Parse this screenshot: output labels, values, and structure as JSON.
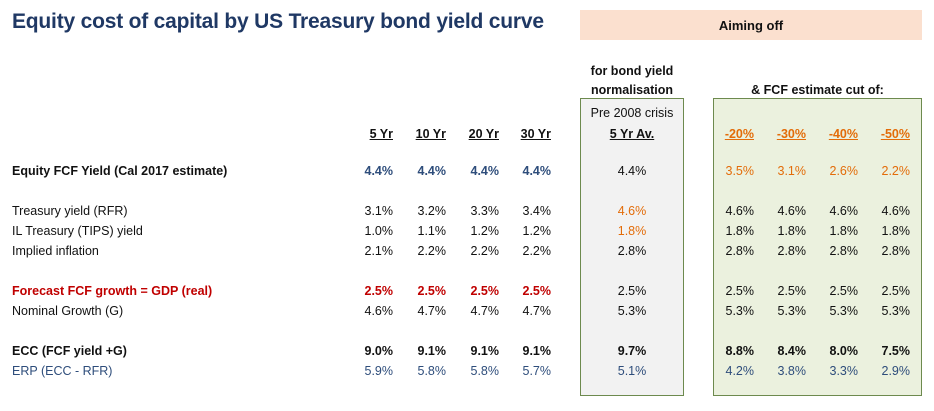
{
  "title": "Equity cost of capital by US Treasury bond yield curve",
  "aiming_off": "Aiming off",
  "bond_note": {
    "line1": "for bond yield",
    "line2": "normalisation",
    "line3": "Pre 2008 crisis"
  },
  "fcf_note": "& FCF estimate cut of:",
  "headers": {
    "tenors": [
      "5 Yr",
      "10 Yr",
      "20 Yr",
      "30 Yr"
    ],
    "avg": "5 Yr Av.",
    "cuts": [
      "-20%",
      "-30%",
      "-40%",
      "-50%"
    ]
  },
  "rows": [
    {
      "label": "Equity FCF Yield (Cal 2017 estimate)",
      "tenors": [
        "4.4%",
        "4.4%",
        "4.4%",
        "4.4%"
      ],
      "avg": "4.4%",
      "cuts": [
        "3.5%",
        "3.1%",
        "2.6%",
        "2.2%"
      ]
    },
    {
      "label": "Treasury yield (RFR)",
      "tenors": [
        "3.1%",
        "3.2%",
        "3.3%",
        "3.4%"
      ],
      "avg": "4.6%",
      "cuts": [
        "4.6%",
        "4.6%",
        "4.6%",
        "4.6%"
      ]
    },
    {
      "label": "IL Treasury (TIPS) yield",
      "tenors": [
        "1.0%",
        "1.1%",
        "1.2%",
        "1.2%"
      ],
      "avg": "1.8%",
      "cuts": [
        "1.8%",
        "1.8%",
        "1.8%",
        "1.8%"
      ]
    },
    {
      "label": "Implied inflation",
      "tenors": [
        "2.1%",
        "2.2%",
        "2.2%",
        "2.2%"
      ],
      "avg": "2.8%",
      "cuts": [
        "2.8%",
        "2.8%",
        "2.8%",
        "2.8%"
      ]
    },
    {
      "label": "Forecast FCF growth = GDP (real)",
      "tenors": [
        "2.5%",
        "2.5%",
        "2.5%",
        "2.5%"
      ],
      "avg": "2.5%",
      "cuts": [
        "2.5%",
        "2.5%",
        "2.5%",
        "2.5%"
      ]
    },
    {
      "label": "Nominal Growth (G)",
      "tenors": [
        "4.6%",
        "4.7%",
        "4.7%",
        "4.7%"
      ],
      "avg": "5.3%",
      "cuts": [
        "5.3%",
        "5.3%",
        "5.3%",
        "5.3%"
      ]
    },
    {
      "label": "ECC (FCF yield +G)",
      "tenors": [
        "9.0%",
        "9.1%",
        "9.1%",
        "9.1%"
      ],
      "avg": "9.7%",
      "cuts": [
        "8.8%",
        "8.4%",
        "8.0%",
        "7.5%"
      ]
    },
    {
      "label": "ERP (ECC - RFR)",
      "tenors": [
        "5.9%",
        "5.8%",
        "5.8%",
        "5.7%"
      ],
      "avg": "5.1%",
      "cuts": [
        "4.2%",
        "3.8%",
        "3.3%",
        "2.9%"
      ]
    }
  ],
  "colors": {
    "title": "#1f3864",
    "blue": "#2e4d7b",
    "orange": "#e36c09",
    "red": "#c00000",
    "aim_fill": "#fbe0cf",
    "grey_box": "#f2f2f2",
    "green_box": "#ebf1de",
    "box_border": "#6d8a4e"
  }
}
